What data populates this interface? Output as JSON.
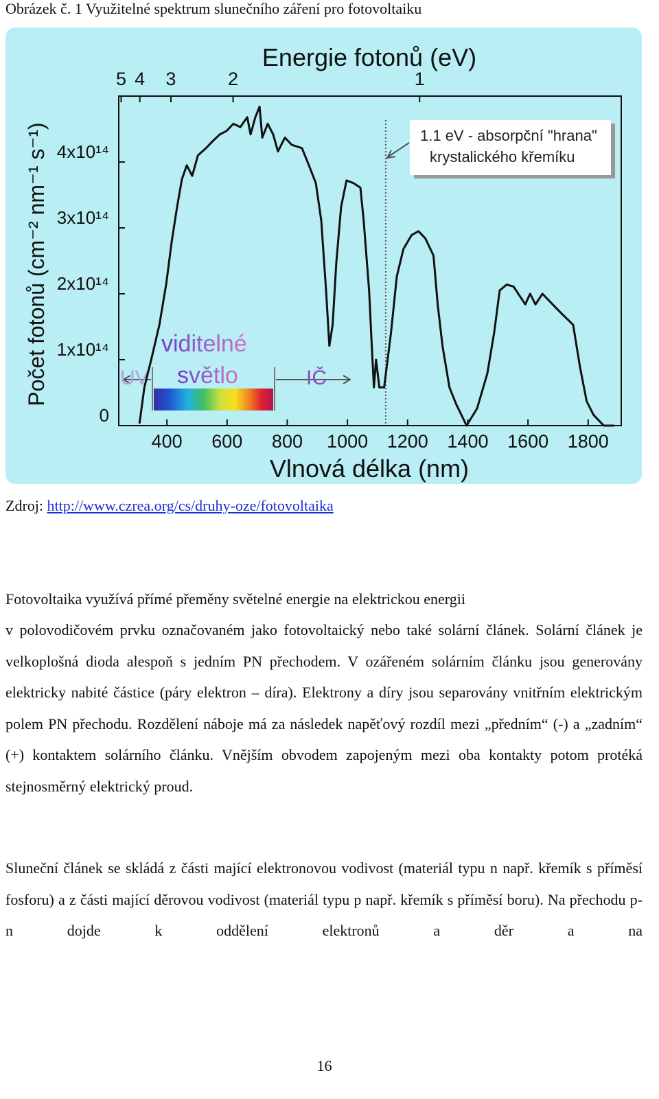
{
  "caption": "Obrázek č. 1 Využitelné spektrum slunečního záření pro fotovoltaiku",
  "chart_data": {
    "type": "line",
    "title": "Energie fotonů (eV)",
    "x_label": "Vlnová délka (nm)",
    "y_label": "Počet fotonů (cm⁻² nm⁻¹ s⁻¹)",
    "xlim": [
      240,
      1910
    ],
    "xticks": [
      400,
      600,
      800,
      1000,
      1200,
      1400,
      1600,
      1800
    ],
    "ylim": [
      0,
      500000000000000
    ],
    "yticks": [
      0,
      {
        "value": 100000000000000,
        "label": "1x10¹⁴"
      },
      {
        "value": 200000000000000,
        "label": "2x10¹⁴"
      },
      {
        "value": 300000000000000,
        "label": "3x10¹⁴"
      },
      {
        "value": 400000000000000,
        "label": "4x10¹⁴"
      }
    ],
    "x2ticks": [
      5,
      4,
      3,
      2,
      1
    ],
    "absorption_edge_ev": 1.1,
    "annotations": {
      "edge": [
        "1.1 eV - absorpční \"hrana\"",
        "krystalického křemíku"
      ],
      "visible": [
        "viditelné",
        "světlo"
      ],
      "uv": "UV",
      "ir": "IČ"
    },
    "color": "#111111",
    "x": [
      309,
      325,
      348,
      375,
      398,
      416,
      434,
      450,
      466,
      484,
      503,
      530,
      553,
      576,
      598,
      621,
      644,
      667,
      678,
      694,
      708,
      717,
      735,
      753,
      769,
      792,
      815,
      849,
      872,
      895,
      913,
      929,
      940,
      951,
      963,
      979,
      997,
      1020,
      1043,
      1054,
      1072,
      1081,
      1088,
      1095,
      1106,
      1122,
      1145,
      1164,
      1186,
      1213,
      1236,
      1259,
      1286,
      1300,
      1316,
      1339,
      1362,
      1396,
      1431,
      1465,
      1488,
      1506,
      1529,
      1552,
      1575,
      1591,
      1607,
      1625,
      1648,
      1682,
      1716,
      1750,
      1773,
      1795,
      1818,
      1852,
      1887
    ],
    "values": [
      3000000000000.0,
      58000000000000.0,
      100000000000000.0,
      153000000000000.0,
      216000000000000.0,
      279000000000000.0,
      332000000000000.0,
      374000000000000.0,
      395000000000000.0,
      379000000000000.0,
      410000000000000.0,
      421000000000000.0,
      432000000000000.0,
      442000000000000.0,
      447000000000000.0,
      458000000000000.0,
      453000000000000.0,
      468000000000000.0,
      442000000000000.0,
      468000000000000.0,
      484000000000000.0,
      437000000000000.0,
      458000000000000.0,
      442000000000000.0,
      416000000000000.0,
      437000000000000.0,
      426000000000000.0,
      421000000000000.0,
      395000000000000.0,
      368000000000000.0,
      311000000000000.0,
      205000000000000.0,
      121000000000000.0,
      153000000000000.0,
      247000000000000.0,
      332000000000000.0,
      372000000000000.0,
      368000000000000.0,
      361000000000000.0,
      311000000000000.0,
      205000000000000.0,
      121000000000000.0,
      58000000000000.0,
      100000000000000.0,
      58000000000000.0,
      58000000000000.0,
      142000000000000.0,
      226000000000000.0,
      268000000000000.0,
      289000000000000.0,
      295000000000000.0,
      284000000000000.0,
      258000000000000.0,
      184000000000000.0,
      121000000000000.0,
      58000000000000.0,
      32000000000000.0,
      0,
      26000000000000.0,
      79000000000000.0,
      142000000000000.0,
      205000000000000.0,
      214000000000000.0,
      211000000000000.0,
      195000000000000.0,
      184000000000000.0,
      200000000000000.0,
      184000000000000.0,
      200000000000000.0,
      184000000000000.0,
      168000000000000.0,
      153000000000000.0,
      89000000000000.0,
      37000000000000.0,
      16000000000000.0,
      0,
      0
    ]
  },
  "source": {
    "prefix": "Zdroj:",
    "link": "http://www.czrea.org/cs/druhy-oze/fotovoltaika"
  },
  "paragraphs": [
    "Fotovoltaika využívá přímé přeměny světelné energie na elektrickou energii",
    "v polovodičovém prvku označovaném jako fotovoltaický nebo také solární článek. Solární článek je velkoplošná dioda alespoň s jedním PN přechodem. V ozářeném solárním článku jsou generovány elektricky nabité částice (páry elektron – díra). Elektrony a díry jsou separovány vnitřním elektrickým polem PN přechodu. Rozdělení náboje má za následek napěťový rozdíl mezi „předním“ (-) a „zadním“ (+) kontaktem solárního článku. Vnějším obvodem zapojeným mezi oba kontakty potom protéká stejnosměrný elektrický proud.",
    "Sluneční článek se skládá z části mající elektronovou vodivost (materiál typu n např. křemík s příměsí fosforu) a z části mající děrovou vodivost (materiál typu p např. křemík s příměsí boru). Na přechodu p-n dojde k oddělení elektronů a děr a na"
  ],
  "page_number": "16"
}
